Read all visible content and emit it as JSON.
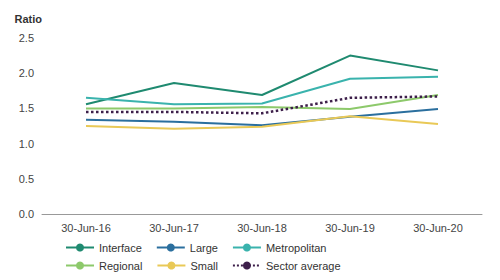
{
  "chart_data": {
    "type": "line",
    "y_label": "Ratio",
    "categories": [
      "30-Jun-16",
      "30-Jun-17",
      "30-Jun-18",
      "30-Jun-19",
      "30-Jun-20"
    ],
    "series": [
      {
        "name": "Interface",
        "color": "#1f8a70",
        "values": [
          1.56,
          1.86,
          1.69,
          2.25,
          2.04
        ]
      },
      {
        "name": "Large",
        "color": "#2b6f9e",
        "values": [
          1.34,
          1.31,
          1.26,
          1.38,
          1.49
        ]
      },
      {
        "name": "Metropolitan",
        "color": "#3ab3ad",
        "values": [
          1.65,
          1.56,
          1.57,
          1.92,
          1.95
        ]
      },
      {
        "name": "Regional",
        "color": "#8dc96b",
        "values": [
          1.5,
          1.5,
          1.52,
          1.49,
          1.69
        ]
      },
      {
        "name": "Small",
        "color": "#e9c957",
        "values": [
          1.25,
          1.21,
          1.24,
          1.39,
          1.28
        ]
      },
      {
        "name": "Sector average",
        "color": "#3d1f4a",
        "line_style": "dotted",
        "values": [
          1.45,
          1.45,
          1.43,
          1.65,
          1.67
        ]
      }
    ],
    "ylim": [
      0,
      2.5
    ],
    "yticks": [
      {
        "value": 0,
        "label": "0.0"
      },
      0.5,
      {
        "value": 1,
        "label": "1.0"
      },
      1.5,
      {
        "value": 2,
        "label": "2.0"
      },
      2.5
    ],
    "grid": false,
    "legend": "bottom"
  }
}
